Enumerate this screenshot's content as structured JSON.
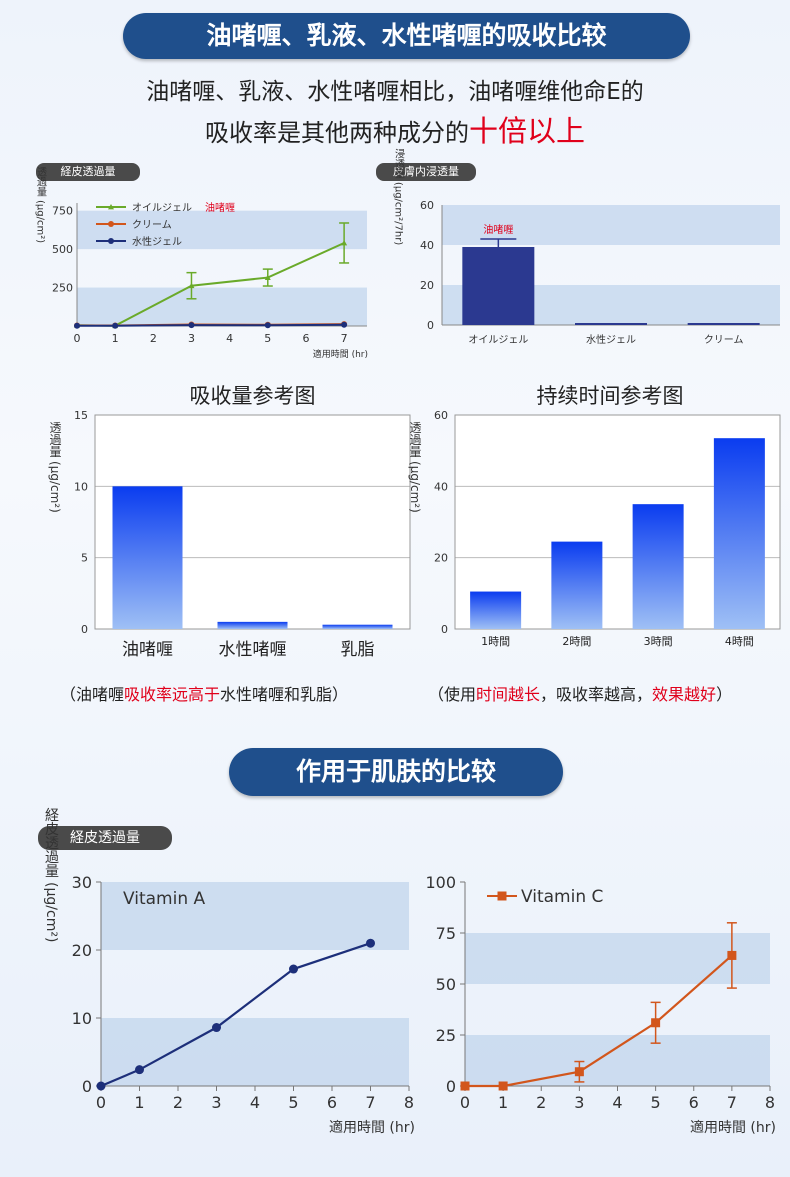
{
  "header": {
    "title": "油啫喱、乳液、水性啫喱的吸收比较",
    "subtitle_line1": "油啫喱、乳液、水性啫喱相比，油啫喱维他命E的",
    "subtitle_line2_a": "吸收率是其他两种成分的",
    "subtitle_line2_highlight": "十倍以上"
  },
  "section2": {
    "title": "作用于肌肤的比较"
  },
  "captions": {
    "absorption": {
      "pre": "（油啫喱",
      "highlight": "吸收率远高于",
      "post": "水性啫喱和乳脂）"
    },
    "duration": {
      "pre": "（使用",
      "highlight1": "时间越长",
      "mid": "，吸收率越高，",
      "highlight2": "效果越好",
      "post": "）"
    }
  },
  "colors": {
    "navy": "#1f4f8c",
    "green": "#6aaa2a",
    "orange": "#d2561c",
    "darkblue": "#1d2f7a",
    "bar_navy": "#2b3990",
    "band": "#c4d7ee",
    "red": "#e0001b"
  },
  "chart_data": [
    {
      "id": "c1",
      "type": "line",
      "tag": "経皮透過量",
      "ylabel": "透過量 (μg/cm²)",
      "xlabel": "適用時間 (hr)",
      "xlim": [
        0,
        7.6
      ],
      "ylim": [
        0,
        800
      ],
      "xticks": [
        0,
        1,
        2,
        3,
        4,
        5,
        6,
        7
      ],
      "yticks": [
        250,
        500,
        750
      ],
      "bands": [
        [
          0,
          250
        ],
        [
          500,
          750
        ]
      ],
      "series": [
        {
          "name": "オイルジェル",
          "name_tag": "油啫喱",
          "color": "#6aaa2a",
          "marker": "triangle",
          "x": [
            0,
            1,
            3,
            5,
            7
          ],
          "y": [
            5,
            2,
            262,
            315,
            540
          ],
          "err": [
            0,
            0,
            85,
            55,
            130
          ]
        },
        {
          "name": "クリーム",
          "color": "#d2561c",
          "marker": "dot",
          "x": [
            0,
            1,
            3,
            5,
            7
          ],
          "y": [
            3,
            3,
            10,
            8,
            12
          ],
          "err": [
            0,
            0,
            0,
            0,
            0
          ]
        },
        {
          "name": "水性ジェル",
          "color": "#1d2f7a",
          "marker": "dot",
          "x": [
            0,
            1,
            3,
            5,
            7
          ],
          "y": [
            2,
            2,
            6,
            5,
            8
          ],
          "err": [
            0,
            0,
            0,
            0,
            0
          ]
        }
      ]
    },
    {
      "id": "c2",
      "type": "bar",
      "tag": "皮膚内浸透量",
      "ylabel": "浸透量 (μg/cm²/7hr)",
      "categories": [
        "オイルジェル",
        "水性ジェル",
        "クリーム"
      ],
      "values": [
        39,
        1,
        1
      ],
      "err": [
        4,
        0,
        0
      ],
      "annotation": "油啫喱",
      "ylim": [
        0,
        60
      ],
      "yticks": [
        0,
        20,
        40,
        60
      ],
      "bands": [
        [
          0,
          20
        ],
        [
          40,
          60
        ]
      ]
    },
    {
      "id": "c3",
      "type": "bar",
      "title": "吸收量参考图",
      "ylabel": "透過量 (μg/cm²)",
      "categories": [
        "油啫喱",
        "水性啫喱",
        "乳脂"
      ],
      "values": [
        10,
        0.5,
        0.3
      ],
      "ylim": [
        0,
        15
      ],
      "yticks": [
        0,
        5,
        10,
        15
      ]
    },
    {
      "id": "c4",
      "type": "bar",
      "title": "持续时间参考图",
      "ylabel": "透過量 (μg/cm²)",
      "categories": [
        "1時間",
        "2時間",
        "3時間",
        "4時間"
      ],
      "values": [
        10.5,
        24.5,
        35,
        53.5
      ],
      "ylim": [
        0,
        60
      ],
      "yticks": [
        0,
        20,
        40,
        60
      ]
    },
    {
      "id": "c5",
      "type": "line",
      "tag": "経皮透過量",
      "ylabel": "経皮透過量 (μg/cm²)",
      "xlabel": "適用時間 (hr)",
      "xlim": [
        0,
        8
      ],
      "ylim": [
        0,
        30
      ],
      "xticks": [
        0,
        1,
        2,
        3,
        4,
        5,
        6,
        7,
        8
      ],
      "yticks": [
        0,
        10,
        20,
        30
      ],
      "bands": [
        [
          0,
          10
        ],
        [
          20,
          30
        ]
      ],
      "label_inside": "Vitamin A",
      "series": [
        {
          "name": "Vitamin A",
          "color": "#1d2f7a",
          "marker": "dot",
          "x": [
            0,
            1,
            3,
            5,
            7
          ],
          "y": [
            0,
            2.4,
            8.6,
            17.2,
            21
          ]
        }
      ]
    },
    {
      "id": "c6",
      "type": "line",
      "xlabel": "適用時間 (hr)",
      "xlim": [
        0,
        8
      ],
      "ylim": [
        0,
        100
      ],
      "xticks": [
        0,
        1,
        2,
        3,
        4,
        5,
        6,
        7,
        8
      ],
      "yticks": [
        0,
        25,
        50,
        75,
        100
      ],
      "bands": [
        [
          0,
          25
        ],
        [
          50,
          75
        ]
      ],
      "series": [
        {
          "name": "Vitamin C",
          "color": "#d2561c",
          "marker": "square",
          "x": [
            0,
            1,
            3,
            5,
            7
          ],
          "y": [
            0,
            0,
            7,
            31,
            64
          ],
          "err": [
            0,
            0,
            5,
            10,
            16
          ]
        }
      ]
    }
  ]
}
